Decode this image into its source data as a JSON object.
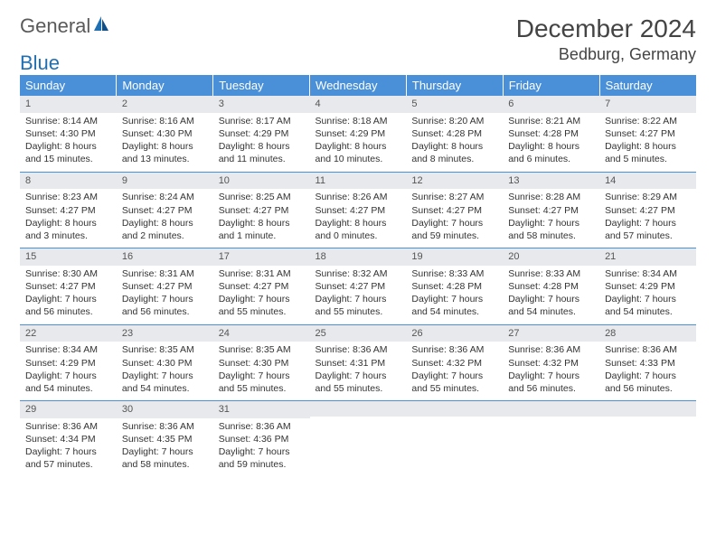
{
  "brand": {
    "part1": "General",
    "part2": "Blue"
  },
  "title": "December 2024",
  "location": "Bedburg, Germany",
  "colors": {
    "header_bg": "#4a90d9",
    "header_text": "#ffffff",
    "daynum_bg": "#e7e9ec",
    "rule": "#4a90d9",
    "text": "#333333",
    "brand_gray": "#5a5a5a",
    "brand_blue": "#1f6fb2"
  },
  "weekdays": [
    "Sunday",
    "Monday",
    "Tuesday",
    "Wednesday",
    "Thursday",
    "Friday",
    "Saturday"
  ],
  "weeks": [
    [
      {
        "n": "1",
        "sr": "Sunrise: 8:14 AM",
        "ss": "Sunset: 4:30 PM",
        "dl": "Daylight: 8 hours and 15 minutes."
      },
      {
        "n": "2",
        "sr": "Sunrise: 8:16 AM",
        "ss": "Sunset: 4:30 PM",
        "dl": "Daylight: 8 hours and 13 minutes."
      },
      {
        "n": "3",
        "sr": "Sunrise: 8:17 AM",
        "ss": "Sunset: 4:29 PM",
        "dl": "Daylight: 8 hours and 11 minutes."
      },
      {
        "n": "4",
        "sr": "Sunrise: 8:18 AM",
        "ss": "Sunset: 4:29 PM",
        "dl": "Daylight: 8 hours and 10 minutes."
      },
      {
        "n": "5",
        "sr": "Sunrise: 8:20 AM",
        "ss": "Sunset: 4:28 PM",
        "dl": "Daylight: 8 hours and 8 minutes."
      },
      {
        "n": "6",
        "sr": "Sunrise: 8:21 AM",
        "ss": "Sunset: 4:28 PM",
        "dl": "Daylight: 8 hours and 6 minutes."
      },
      {
        "n": "7",
        "sr": "Sunrise: 8:22 AM",
        "ss": "Sunset: 4:27 PM",
        "dl": "Daylight: 8 hours and 5 minutes."
      }
    ],
    [
      {
        "n": "8",
        "sr": "Sunrise: 8:23 AM",
        "ss": "Sunset: 4:27 PM",
        "dl": "Daylight: 8 hours and 3 minutes."
      },
      {
        "n": "9",
        "sr": "Sunrise: 8:24 AM",
        "ss": "Sunset: 4:27 PM",
        "dl": "Daylight: 8 hours and 2 minutes."
      },
      {
        "n": "10",
        "sr": "Sunrise: 8:25 AM",
        "ss": "Sunset: 4:27 PM",
        "dl": "Daylight: 8 hours and 1 minute."
      },
      {
        "n": "11",
        "sr": "Sunrise: 8:26 AM",
        "ss": "Sunset: 4:27 PM",
        "dl": "Daylight: 8 hours and 0 minutes."
      },
      {
        "n": "12",
        "sr": "Sunrise: 8:27 AM",
        "ss": "Sunset: 4:27 PM",
        "dl": "Daylight: 7 hours and 59 minutes."
      },
      {
        "n": "13",
        "sr": "Sunrise: 8:28 AM",
        "ss": "Sunset: 4:27 PM",
        "dl": "Daylight: 7 hours and 58 minutes."
      },
      {
        "n": "14",
        "sr": "Sunrise: 8:29 AM",
        "ss": "Sunset: 4:27 PM",
        "dl": "Daylight: 7 hours and 57 minutes."
      }
    ],
    [
      {
        "n": "15",
        "sr": "Sunrise: 8:30 AM",
        "ss": "Sunset: 4:27 PM",
        "dl": "Daylight: 7 hours and 56 minutes."
      },
      {
        "n": "16",
        "sr": "Sunrise: 8:31 AM",
        "ss": "Sunset: 4:27 PM",
        "dl": "Daylight: 7 hours and 56 minutes."
      },
      {
        "n": "17",
        "sr": "Sunrise: 8:31 AM",
        "ss": "Sunset: 4:27 PM",
        "dl": "Daylight: 7 hours and 55 minutes."
      },
      {
        "n": "18",
        "sr": "Sunrise: 8:32 AM",
        "ss": "Sunset: 4:27 PM",
        "dl": "Daylight: 7 hours and 55 minutes."
      },
      {
        "n": "19",
        "sr": "Sunrise: 8:33 AM",
        "ss": "Sunset: 4:28 PM",
        "dl": "Daylight: 7 hours and 54 minutes."
      },
      {
        "n": "20",
        "sr": "Sunrise: 8:33 AM",
        "ss": "Sunset: 4:28 PM",
        "dl": "Daylight: 7 hours and 54 minutes."
      },
      {
        "n": "21",
        "sr": "Sunrise: 8:34 AM",
        "ss": "Sunset: 4:29 PM",
        "dl": "Daylight: 7 hours and 54 minutes."
      }
    ],
    [
      {
        "n": "22",
        "sr": "Sunrise: 8:34 AM",
        "ss": "Sunset: 4:29 PM",
        "dl": "Daylight: 7 hours and 54 minutes."
      },
      {
        "n": "23",
        "sr": "Sunrise: 8:35 AM",
        "ss": "Sunset: 4:30 PM",
        "dl": "Daylight: 7 hours and 54 minutes."
      },
      {
        "n": "24",
        "sr": "Sunrise: 8:35 AM",
        "ss": "Sunset: 4:30 PM",
        "dl": "Daylight: 7 hours and 55 minutes."
      },
      {
        "n": "25",
        "sr": "Sunrise: 8:36 AM",
        "ss": "Sunset: 4:31 PM",
        "dl": "Daylight: 7 hours and 55 minutes."
      },
      {
        "n": "26",
        "sr": "Sunrise: 8:36 AM",
        "ss": "Sunset: 4:32 PM",
        "dl": "Daylight: 7 hours and 55 minutes."
      },
      {
        "n": "27",
        "sr": "Sunrise: 8:36 AM",
        "ss": "Sunset: 4:32 PM",
        "dl": "Daylight: 7 hours and 56 minutes."
      },
      {
        "n": "28",
        "sr": "Sunrise: 8:36 AM",
        "ss": "Sunset: 4:33 PM",
        "dl": "Daylight: 7 hours and 56 minutes."
      }
    ],
    [
      {
        "n": "29",
        "sr": "Sunrise: 8:36 AM",
        "ss": "Sunset: 4:34 PM",
        "dl": "Daylight: 7 hours and 57 minutes."
      },
      {
        "n": "30",
        "sr": "Sunrise: 8:36 AM",
        "ss": "Sunset: 4:35 PM",
        "dl": "Daylight: 7 hours and 58 minutes."
      },
      {
        "n": "31",
        "sr": "Sunrise: 8:36 AM",
        "ss": "Sunset: 4:36 PM",
        "dl": "Daylight: 7 hours and 59 minutes."
      },
      {
        "n": "",
        "sr": "",
        "ss": "",
        "dl": ""
      },
      {
        "n": "",
        "sr": "",
        "ss": "",
        "dl": ""
      },
      {
        "n": "",
        "sr": "",
        "ss": "",
        "dl": ""
      },
      {
        "n": "",
        "sr": "",
        "ss": "",
        "dl": ""
      }
    ]
  ]
}
